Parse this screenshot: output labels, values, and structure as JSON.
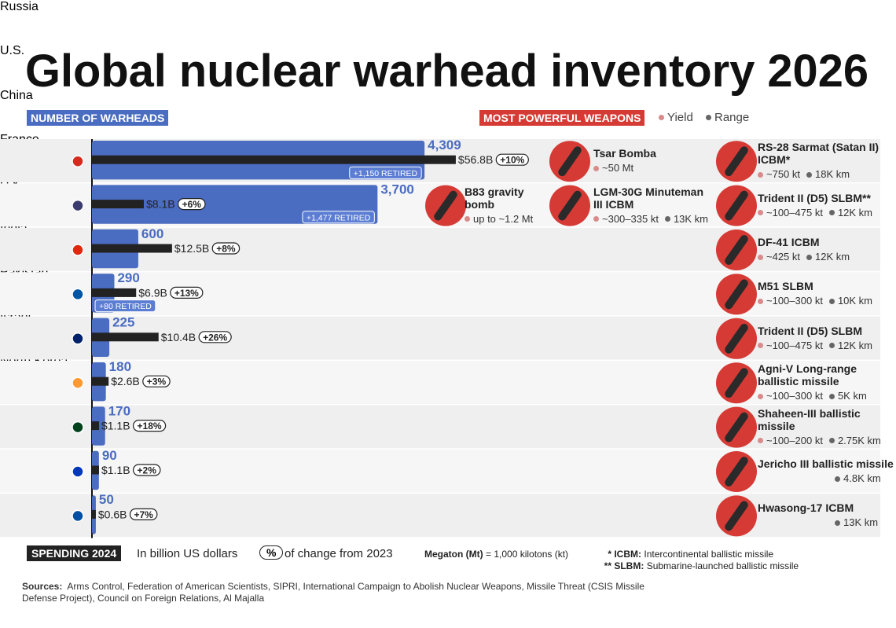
{
  "title": "Global nuclear warhead inventory 2026",
  "header": {
    "left": "NUMBER OF WARHEADS",
    "right": "MOST POWERFUL WEAPONS",
    "yield_legend": "Yield",
    "range_legend": "Range"
  },
  "chart_data": {
    "type": "bar",
    "categories": [
      "Russia",
      "U.S.",
      "China",
      "France",
      "U.K.",
      "India",
      "Pakistan",
      "Israel",
      "North Korea"
    ],
    "series": [
      {
        "name": "Warheads",
        "color": "#4a6cc1",
        "values": [
          4309,
          3700,
          600,
          290,
          225,
          180,
          170,
          90,
          50
        ],
        "value_labels": [
          "4,309",
          "3,700",
          "600",
          "290",
          "225",
          "180",
          "170",
          "90",
          "50"
        ]
      },
      {
        "name": "Spending",
        "color": "#222222",
        "values": [
          56.8,
          8.1,
          12.5,
          6.9,
          10.4,
          2.6,
          1.1,
          1.1,
          0.6
        ],
        "value_labels": [
          "$56.8B",
          "$8.1B",
          "$12.5B",
          "$6.9B",
          "$10.4B",
          "$2.6B",
          "$1.1B",
          "$1.1B",
          "$0.6B"
        ]
      },
      {
        "name": "Change",
        "values": [
          10,
          6,
          8,
          13,
          26,
          3,
          18,
          2,
          7
        ],
        "value_labels": [
          "+10%",
          "+6%",
          "+8%",
          "+13%",
          "+26%",
          "+3%",
          "+18%",
          "+2%",
          "+7%"
        ]
      },
      {
        "name": "Retired",
        "values": [
          1150,
          1477,
          null,
          80,
          null,
          null,
          null,
          null,
          null
        ],
        "value_labels": [
          "+1,150 RETIRED",
          "+1,477 RETIRED",
          null,
          "+80 RETIRED",
          null,
          null,
          null,
          null,
          null
        ]
      }
    ]
  },
  "weapons": [
    [
      {
        "name": "Tsar Bomba",
        "yield": "~50 Mt"
      },
      {
        "name": "RS-28 Sarmat (Satan II) ICBM*",
        "yield": "~750 kt",
        "range": "18K km"
      }
    ],
    [
      {
        "name": "B83 gravity bomb",
        "yield": "up to ~1.2 Mt"
      },
      {
        "name": "LGM-30G Minuteman III ICBM",
        "yield": "~300–335 kt",
        "range": "13K km"
      },
      {
        "name": "Trident II (D5) SLBM**",
        "yield": "~100–475 kt",
        "range": "12K km"
      }
    ],
    [
      {
        "name": "DF-41 ICBM",
        "yield": "~425 kt",
        "range": "12K km"
      }
    ],
    [
      {
        "name": "M51 SLBM",
        "yield": "~100–300 kt",
        "range": "10K km"
      }
    ],
    [
      {
        "name": "Trident II (D5) SLBM",
        "yield": "~100–475 kt",
        "range": "12K km"
      }
    ],
    [
      {
        "name": "Agni-V Long-range ballistic missile",
        "yield": "~100–300 kt",
        "range": "5K km"
      }
    ],
    [
      {
        "name": "Shaheen-III ballistic missile",
        "yield": "~100–200 kt",
        "range": "2.75K km"
      }
    ],
    [
      {
        "name": "Jericho III ballistic missile",
        "range": "4.8K km"
      }
    ],
    [
      {
        "name": "Hwasong-17 ICBM",
        "range": "13K km"
      }
    ]
  ],
  "footer": {
    "spending": "SPENDING 2024",
    "spending_note": "In billion US dollars",
    "pct": "%",
    "pct_note": "of change from 2023",
    "megaton": "Megaton (Mt)",
    "megaton_note": "= 1,000 kilotons (kt)",
    "icbm_mark": "*",
    "icbm": "ICBM:",
    "icbm_note": "Intercontinental ballistic missile",
    "slbm_mark": "**",
    "slbm": "SLBM:",
    "slbm_note": "Submarine-launched ballistic missile",
    "sources_label": "Sources:",
    "sources": "Arms Control, Federation of American Scientists, SIPRI, International Campaign to Abolish Nuclear Weapons, Missile Threat (CSIS Missile Defense Project), Council on Foreign Relations, Al Majalla"
  }
}
